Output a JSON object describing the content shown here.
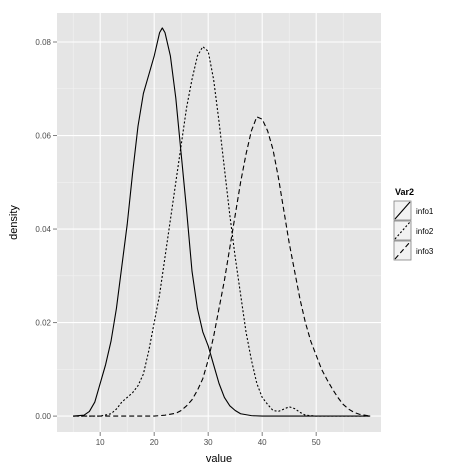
{
  "chart_data": {
    "type": "line",
    "xlabel": "value",
    "ylabel": "density",
    "xlim": [
      2,
      62
    ],
    "ylim": [
      -0.0034,
      0.0862
    ],
    "x_ticks": [
      10,
      20,
      30,
      40,
      50
    ],
    "y_ticks": [
      0.0,
      0.02,
      0.04,
      0.06,
      0.08
    ],
    "y_tick_labels": [
      "0.00",
      "0.02",
      "0.04",
      "0.06",
      "0.08"
    ],
    "grid": true,
    "background": "#e5e5e5",
    "grid_color": "#ffffff",
    "legend": {
      "title": "Var2",
      "placement": "right",
      "entries": [
        "info1",
        "info2",
        "info3"
      ]
    },
    "series": [
      {
        "name": "info1",
        "linestyle": "solid",
        "points": [
          [
            5,
            0.0
          ],
          [
            7,
            0.0002
          ],
          [
            8,
            0.001
          ],
          [
            9,
            0.003
          ],
          [
            10,
            0.007
          ],
          [
            11,
            0.011
          ],
          [
            12,
            0.016
          ],
          [
            13,
            0.023
          ],
          [
            14,
            0.032
          ],
          [
            15,
            0.041
          ],
          [
            16,
            0.052
          ],
          [
            17,
            0.062
          ],
          [
            18,
            0.069
          ],
          [
            19,
            0.073
          ],
          [
            20,
            0.077
          ],
          [
            21,
            0.082
          ],
          [
            21.5,
            0.083
          ],
          [
            22,
            0.082
          ],
          [
            23,
            0.077
          ],
          [
            24,
            0.068
          ],
          [
            25,
            0.056
          ],
          [
            26,
            0.044
          ],
          [
            27,
            0.031
          ],
          [
            28,
            0.023
          ],
          [
            29,
            0.018
          ],
          [
            30,
            0.015
          ],
          [
            31,
            0.011
          ],
          [
            32,
            0.007
          ],
          [
            33,
            0.004
          ],
          [
            34,
            0.0022
          ],
          [
            35,
            0.0012
          ],
          [
            36,
            0.0005
          ],
          [
            38,
            0.0001
          ],
          [
            40,
            0.0
          ],
          [
            50,
            0.0
          ],
          [
            60,
            0.0
          ]
        ]
      },
      {
        "name": "info2",
        "linestyle": "dotted",
        "points": [
          [
            5,
            0.0
          ],
          [
            10,
            0.0
          ],
          [
            12,
            0.0005
          ],
          [
            13,
            0.0015
          ],
          [
            14,
            0.003
          ],
          [
            15,
            0.004
          ],
          [
            16,
            0.005
          ],
          [
            17,
            0.0065
          ],
          [
            18,
            0.009
          ],
          [
            19,
            0.014
          ],
          [
            20,
            0.02
          ],
          [
            21,
            0.026
          ],
          [
            22,
            0.034
          ],
          [
            23,
            0.042
          ],
          [
            24,
            0.05
          ],
          [
            25,
            0.058
          ],
          [
            26,
            0.066
          ],
          [
            27,
            0.072
          ],
          [
            28,
            0.077
          ],
          [
            29,
            0.079
          ],
          [
            30,
            0.078
          ],
          [
            31,
            0.072
          ],
          [
            32,
            0.063
          ],
          [
            33,
            0.053
          ],
          [
            34,
            0.043
          ],
          [
            35,
            0.034
          ],
          [
            36,
            0.026
          ],
          [
            37,
            0.018
          ],
          [
            38,
            0.012
          ],
          [
            39,
            0.007
          ],
          [
            40,
            0.004
          ],
          [
            41,
            0.0025
          ],
          [
            42,
            0.0012
          ],
          [
            43,
            0.001
          ],
          [
            44,
            0.0015
          ],
          [
            45,
            0.002
          ],
          [
            46,
            0.0016
          ],
          [
            47,
            0.0008
          ],
          [
            48,
            0.0002
          ],
          [
            50,
            0.0
          ],
          [
            60,
            0.0
          ]
        ]
      },
      {
        "name": "info3",
        "linestyle": "dashed",
        "points": [
          [
            5,
            0.0
          ],
          [
            20,
            0.0
          ],
          [
            22,
            0.0002
          ],
          [
            24,
            0.0006
          ],
          [
            25,
            0.0012
          ],
          [
            26,
            0.0022
          ],
          [
            27,
            0.0035
          ],
          [
            28,
            0.0055
          ],
          [
            29,
            0.008
          ],
          [
            30,
            0.012
          ],
          [
            31,
            0.017
          ],
          [
            32,
            0.023
          ],
          [
            33,
            0.029
          ],
          [
            34,
            0.036
          ],
          [
            35,
            0.043
          ],
          [
            36,
            0.05
          ],
          [
            37,
            0.056
          ],
          [
            38,
            0.061
          ],
          [
            39,
            0.064
          ],
          [
            40,
            0.0635
          ],
          [
            41,
            0.061
          ],
          [
            42,
            0.057
          ],
          [
            43,
            0.051
          ],
          [
            44,
            0.044
          ],
          [
            45,
            0.037
          ],
          [
            46,
            0.031
          ],
          [
            47,
            0.025
          ],
          [
            48,
            0.02
          ],
          [
            49,
            0.016
          ],
          [
            50,
            0.013
          ],
          [
            51,
            0.01
          ],
          [
            52,
            0.0078
          ],
          [
            53,
            0.0058
          ],
          [
            54,
            0.004
          ],
          [
            55,
            0.0025
          ],
          [
            56,
            0.0015
          ],
          [
            57,
            0.0008
          ],
          [
            58,
            0.0004
          ],
          [
            59,
            0.0002
          ],
          [
            60,
            0.0
          ]
        ]
      }
    ]
  }
}
